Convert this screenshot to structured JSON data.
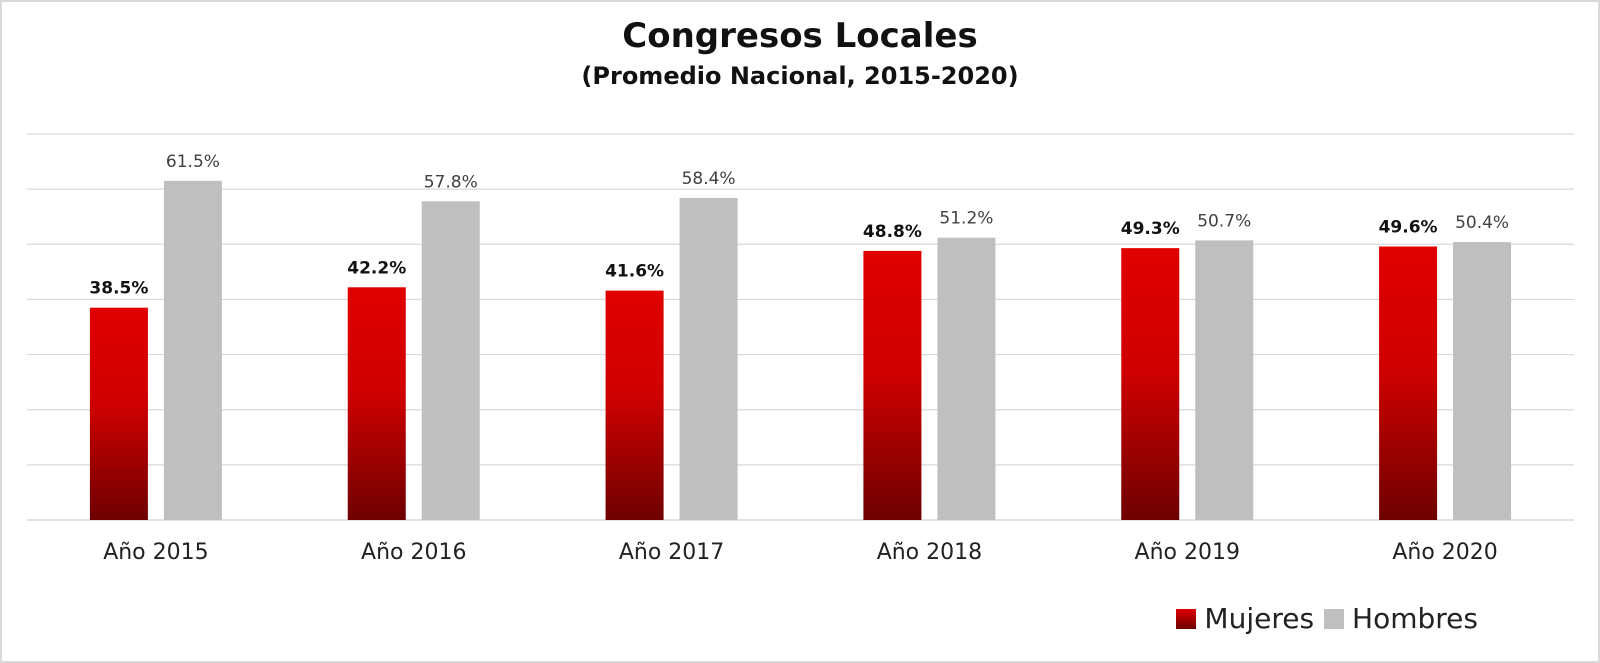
{
  "chart_data": {
    "type": "bar",
    "title": "Congresos Locales",
    "subtitle": "(Promedio Nacional, 2015-2020)",
    "categories": [
      "Año 2015",
      "Año 2016",
      "Año 2017",
      "Año 2018",
      "Año 2019",
      "Año 2020"
    ],
    "series": [
      {
        "name": "Mujeres",
        "values": [
          38.5,
          42.2,
          41.6,
          48.8,
          49.3,
          49.6
        ],
        "labels": [
          "38.5%",
          "42.2%",
          "41.6%",
          "48.8%",
          "49.3%",
          "49.6%"
        ],
        "color": "#e00000"
      },
      {
        "name": "Hombres",
        "values": [
          61.5,
          57.8,
          58.4,
          51.2,
          50.7,
          50.4
        ],
        "labels": [
          "61.5%",
          "57.8%",
          "58.4%",
          "51.2%",
          "50.7%",
          "50.4%"
        ],
        "color": "#bfbfbf"
      }
    ],
    "ylim": [
      0,
      70
    ],
    "grid": true,
    "legend_position": "bottom-right"
  }
}
